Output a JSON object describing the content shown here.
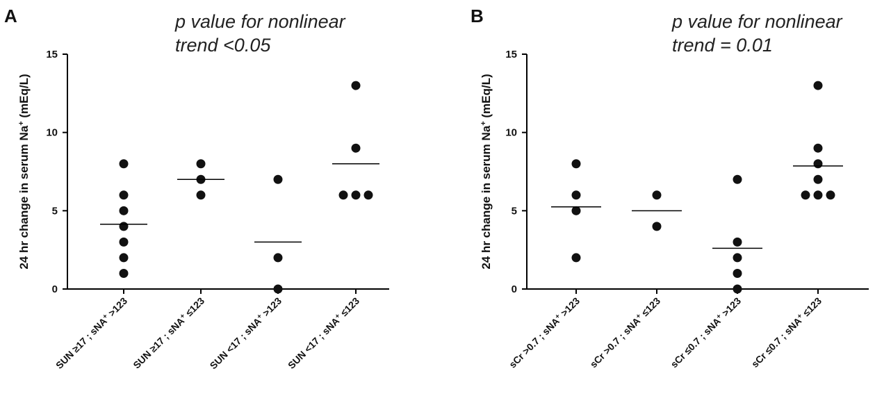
{
  "chart_data": [
    {
      "type": "scatter",
      "panel": "A",
      "annotation_lines": [
        "p value for nonlinear",
        "trend <0.05"
      ],
      "ylabel_main": "24 hr change in serum Na",
      "ylabel_sup": "+",
      "ylabel_unit": " (mEq/L)",
      "ylim": [
        0,
        15
      ],
      "yticks": [
        "0",
        "5",
        "10",
        "15"
      ],
      "grid": false,
      "categories": [
        {
          "a": "SUN ",
          "sym": "≥",
          "b": "17 ; sNA",
          "sup": "+",
          "op": " >",
          "c": "123"
        },
        {
          "a": "SUN ",
          "sym": "≥",
          "b": "17 ; sNA",
          "sup": "+",
          "op": " ",
          "c": "≤123"
        },
        {
          "a": "SUN ",
          "sym": "<",
          "b": "17 ; sNA",
          "sup": "+",
          "op": " >",
          "c": "123"
        },
        {
          "a": "SUN ",
          "sym": "<",
          "b": "17 ; sNA",
          "sup": "+",
          "op": " ",
          "c": "≤123"
        }
      ],
      "series": [
        {
          "points": [
            8,
            6,
            5,
            4,
            3,
            2,
            1
          ],
          "mean": 4.14
        },
        {
          "points": [
            8,
            7,
            6
          ],
          "mean": 7
        },
        {
          "points": [
            7,
            2,
            0
          ],
          "mean": 3
        },
        {
          "points": [
            13,
            9,
            6,
            6,
            6
          ],
          "mean": 8
        }
      ]
    },
    {
      "type": "scatter",
      "panel": "B",
      "annotation_lines": [
        "p value for nonlinear",
        "trend = 0.01"
      ],
      "ylabel_main": "24 hr change in serum Na",
      "ylabel_sup": "+",
      "ylabel_unit": " (mEq/L)",
      "ylim": [
        0,
        15
      ],
      "yticks": [
        "0",
        "5",
        "10",
        "15"
      ],
      "grid": false,
      "categories": [
        {
          "a": "sCr ",
          "sym": ">",
          "b": "0.7 ; sNA",
          "sup": "+",
          "op": " >",
          "c": "123"
        },
        {
          "a": "sCr ",
          "sym": ">",
          "b": "0.7 ; sNA",
          "sup": "+",
          "op": " ",
          "c": "≤123"
        },
        {
          "a": "sCr ",
          "sym": "≤",
          "b": "0.7 ; sNA",
          "sup": "+",
          "op": " >",
          "c": "123"
        },
        {
          "a": "sCr ",
          "sym": "≤",
          "b": "0.7 ; sNA",
          "sup": "+",
          "op": " ",
          "c": "≤123"
        }
      ],
      "series": [
        {
          "points": [
            8,
            6,
            5,
            2
          ],
          "mean": 5.25
        },
        {
          "points": [
            6,
            4
          ],
          "mean": 5
        },
        {
          "points": [
            7,
            3,
            2,
            1,
            0
          ],
          "mean": 2.6
        },
        {
          "points": [
            13,
            9,
            8,
            7,
            6,
            6,
            6
          ],
          "mean": 7.86
        }
      ]
    }
  ]
}
